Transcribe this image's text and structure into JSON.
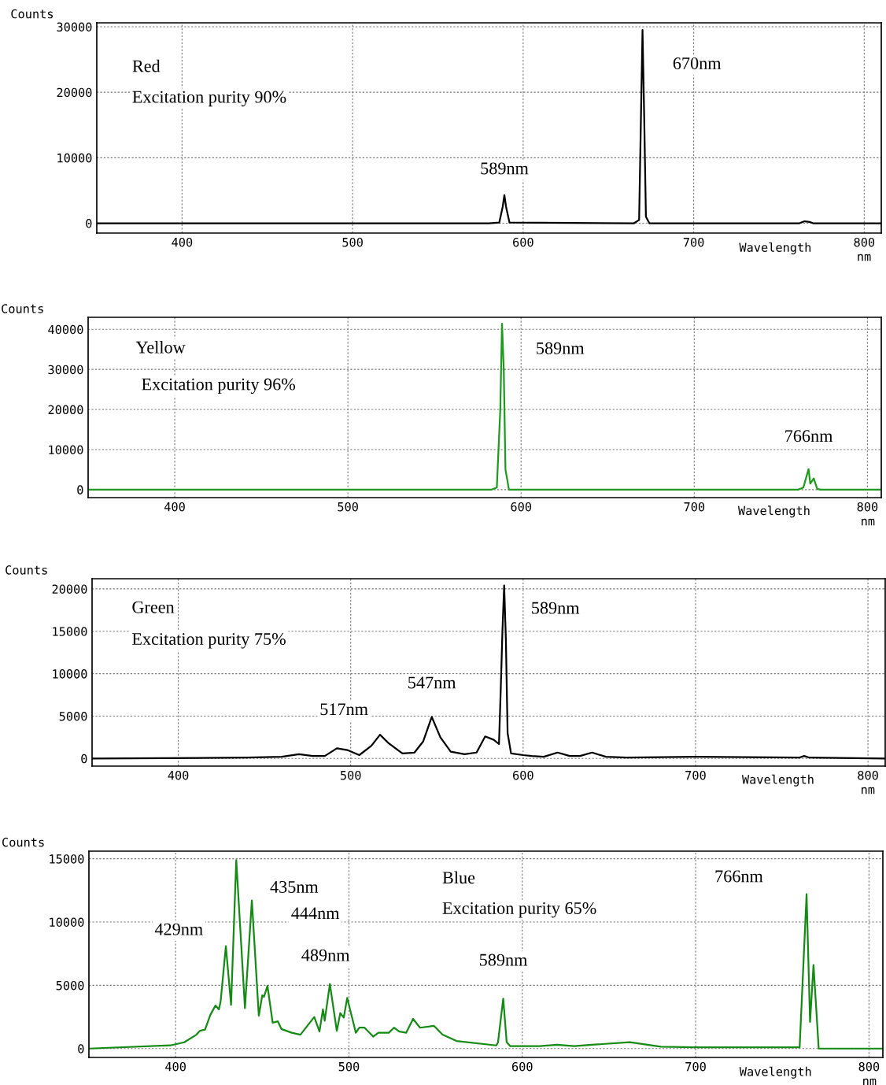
{
  "chart_data": [
    {
      "type": "line",
      "title": "Red",
      "subtitle": "Excitation purity 90%",
      "xlabel": "Wavelength",
      "ylabel": "Counts",
      "xlim": [
        350,
        810
      ],
      "ylim": [
        -1500,
        30600
      ],
      "xticks": [
        400,
        500,
        600,
        700,
        800
      ],
      "yticks": [
        0,
        10000,
        20000,
        30000
      ],
      "grid": true,
      "series": [
        {
          "color": "#000000",
          "x": [
            350,
            580,
            586,
            588,
            589,
            590,
            592,
            665,
            668,
            669,
            670,
            671,
            672,
            674,
            762,
            765,
            768,
            770,
            810
          ],
          "values": [
            0,
            0,
            100,
            2500,
            4300,
            2500,
            100,
            0,
            500,
            15000,
            29500,
            16000,
            1000,
            0,
            0,
            300,
            200,
            0,
            0
          ]
        }
      ],
      "annotations": [
        {
          "text": "589nm",
          "x": 589,
          "y": 4300
        },
        "670nm",
        "nm"
      ]
    },
    {
      "type": "line",
      "title": "Yellow",
      "subtitle": "Excitation purity 96%",
      "xlabel": "Wavelength",
      "ylabel": "Counts",
      "xlim": [
        350,
        808
      ],
      "ylim": [
        -2000,
        43000
      ],
      "xticks": [
        400,
        500,
        600,
        700,
        800
      ],
      "yticks": [
        0,
        10000,
        20000,
        30000,
        40000
      ],
      "grid": true,
      "series": [
        {
          "color": "#1f9a1f",
          "x": [
            350,
            583,
            586,
            588,
            589,
            590,
            591,
            593,
            760,
            763,
            766,
            767,
            769,
            771,
            773,
            808
          ],
          "values": [
            0,
            0,
            500,
            20000,
            41400,
            30000,
            5000,
            0,
            0,
            500,
            5100,
            1500,
            2800,
            200,
            0,
            0
          ]
        }
      ],
      "annotations": [
        "589nm",
        {
          "text": "766nm",
          "x": 766,
          "y": 5100
        },
        "nm"
      ]
    },
    {
      "type": "line",
      "title": "Green",
      "subtitle": "Excitation purity 75%",
      "xlabel": "Wavelength",
      "ylabel": "Counts",
      "xlim": [
        350,
        810
      ],
      "ylim": [
        -900,
        21200
      ],
      "xticks": [
        400,
        500,
        600,
        700,
        800
      ],
      "yticks": [
        0,
        5000,
        10000,
        15000,
        20000
      ],
      "grid": true,
      "series": [
        {
          "color": "#000000",
          "x": [
            350,
            440,
            460,
            470,
            478,
            485,
            492,
            498,
            505,
            512,
            517,
            522,
            530,
            537,
            542,
            547,
            552,
            558,
            566,
            573,
            578,
            583,
            586,
            587,
            588,
            589,
            590,
            591,
            593,
            600,
            605,
            612,
            620,
            627,
            633,
            640,
            648,
            660,
            700,
            760,
            763,
            766,
            810
          ],
          "values": [
            0,
            100,
            200,
            500,
            300,
            300,
            1200,
            1000,
            400,
            1500,
            2800,
            1800,
            600,
            700,
            2000,
            4900,
            2500,
            800,
            500,
            700,
            2600,
            2200,
            1700,
            8000,
            15000,
            20400,
            14000,
            3000,
            600,
            400,
            300,
            200,
            700,
            300,
            300,
            700,
            200,
            100,
            200,
            100,
            300,
            100,
            0
          ]
        }
      ],
      "annotations": [
        "589nm",
        {
          "text": "547nm",
          "x": 547,
          "y": 4900
        },
        {
          "text": "517nm",
          "x": 517,
          "y": 2800
        },
        "nm"
      ]
    },
    {
      "type": "line",
      "title": "Blue",
      "subtitle": "Excitation purity 65%",
      "xlabel": "Wavelength",
      "ylabel": "Counts",
      "xlim": [
        350,
        808
      ],
      "ylim": [
        -700,
        15600
      ],
      "xticks": [
        400,
        500,
        600,
        700,
        800
      ],
      "yticks": [
        0,
        5000,
        10000,
        15000
      ],
      "grid": true,
      "series": [
        {
          "color": "#158a15",
          "x": [
            350,
            397,
            405,
            412,
            414,
            417,
            420,
            423,
            425,
            426,
            429,
            432,
            435,
            440,
            444,
            448,
            450,
            451,
            453,
            456,
            459,
            461,
            467,
            472,
            476,
            480,
            483,
            485,
            486,
            489,
            493,
            495,
            497,
            499,
            504,
            506,
            509,
            514,
            517,
            523,
            526,
            529,
            533,
            537,
            541,
            549,
            554,
            562,
            585,
            586,
            589,
            591,
            593,
            610,
            620,
            630,
            640,
            662,
            680,
            700,
            760,
            764,
            766,
            768,
            771,
            808
          ],
          "values": [
            0,
            250,
            500,
            1100,
            1400,
            1500,
            2650,
            3400,
            3100,
            3750,
            8100,
            3450,
            14900,
            3200,
            11700,
            2600,
            4200,
            4100,
            4950,
            2050,
            2150,
            1550,
            1250,
            1100,
            1800,
            2500,
            1350,
            3100,
            2200,
            5100,
            1400,
            2800,
            2450,
            4000,
            1250,
            1650,
            1650,
            950,
            1250,
            1250,
            1650,
            1350,
            1250,
            2350,
            1650,
            1800,
            1100,
            600,
            250,
            500,
            3950,
            500,
            200,
            200,
            300,
            200,
            300,
            500,
            150,
            100,
            100,
            12200,
            2100,
            6600,
            0,
            0
          ]
        }
      ],
      "annotations": [
        {
          "text": "435nm",
          "x": 435,
          "y": 14900
        },
        {
          "text": "444nm",
          "x": 444,
          "y": 11700
        },
        {
          "text": "429nm",
          "x": 429,
          "y": 8100
        },
        {
          "text": "489nm",
          "x": 489,
          "y": 5100
        },
        {
          "text": "589nm",
          "x": 589,
          "y": 3950
        },
        {
          "text": "766nm",
          "x": 764,
          "y": 12200
        },
        "nm"
      ]
    }
  ]
}
